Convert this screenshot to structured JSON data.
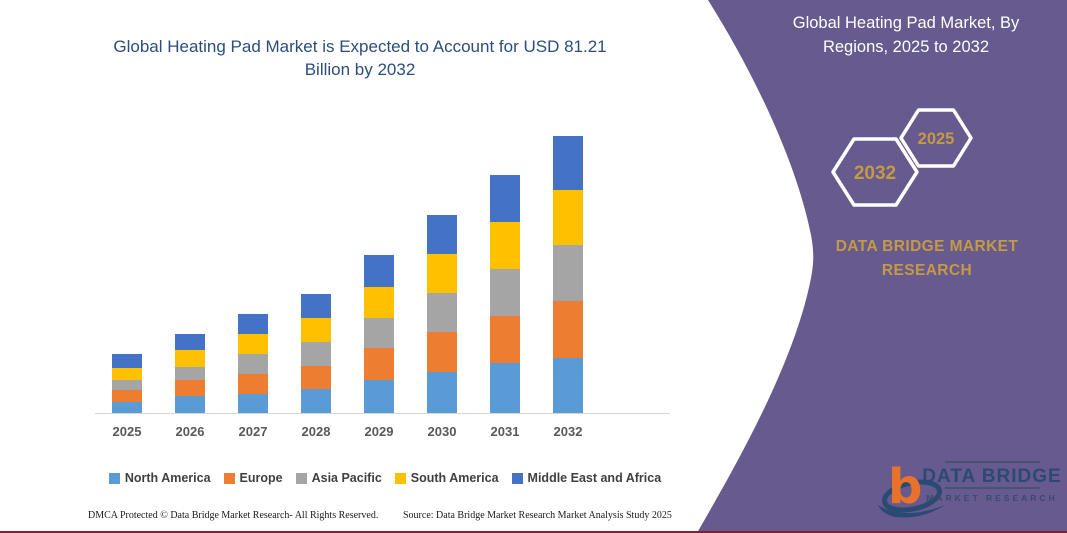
{
  "chart_data": {
    "type": "bar",
    "stacked": true,
    "title": "Global Heating Pad Market is Expected to Account for USD 81.21 Billion by 2032",
    "xlabel": "",
    "ylabel": "",
    "grid": false,
    "value_axis_visible": false,
    "legend_position": "bottom",
    "categories": [
      "2025",
      "2026",
      "2027",
      "2028",
      "2029",
      "2030",
      "2031",
      "2032"
    ],
    "series": [
      {
        "name": "North America",
        "color": "#5b9bd5",
        "values": [
          3.2,
          5.0,
          5.7,
          6.9,
          9.8,
          12.0,
          14.5,
          16.2
        ]
      },
      {
        "name": "Europe",
        "color": "#ed7d31",
        "values": [
          3.6,
          4.7,
          5.8,
          7.0,
          9.3,
          11.6,
          14.0,
          16.5
        ]
      },
      {
        "name": "Asia Pacific",
        "color": "#a5a5a5",
        "values": [
          2.9,
          3.9,
          5.8,
          7.0,
          8.8,
          11.5,
          13.8,
          16.4
        ]
      },
      {
        "name": "South America",
        "color": "#ffc000",
        "values": [
          3.6,
          4.7,
          5.8,
          7.0,
          9.0,
          11.4,
          13.6,
          16.1
        ]
      },
      {
        "name": "Middle East and Africa",
        "color": "#4472c4",
        "values": [
          4.1,
          4.8,
          6.0,
          7.0,
          9.5,
          11.4,
          13.7,
          16.0
        ]
      }
    ],
    "totals_estimated_usd_billion": [
      17.4,
      23.1,
      29.1,
      34.9,
      46.4,
      57.9,
      69.6,
      81.21
    ]
  },
  "footer": {
    "left": "DMCA Protected © Data Bridge Market Research-  All Rights Reserved.",
    "right": "Source: Data Bridge Market Research  Market Analysis Study 2025"
  },
  "panel": {
    "bg_color": "#675a8e",
    "gold_color": "#c49a45",
    "title": "Global Heating Pad Market, By Regions, 2025 to 2032",
    "hexagons": [
      {
        "label": "2032"
      },
      {
        "label": "2025"
      }
    ],
    "brand_line1": "DATA BRIDGE MARKET",
    "brand_line2": "RESEARCH"
  },
  "logo": {
    "monogram": "b",
    "name_top": "DATA BRIDGE",
    "name_bottom": "MARKET RESEARCH",
    "orange": "#e8722a",
    "navy": "#2b4a73"
  },
  "colors": {
    "chart_title": "#2c4d7e",
    "axis_label": "#595959",
    "legend_text": "#404040",
    "bottom_line": "#7d2237"
  }
}
